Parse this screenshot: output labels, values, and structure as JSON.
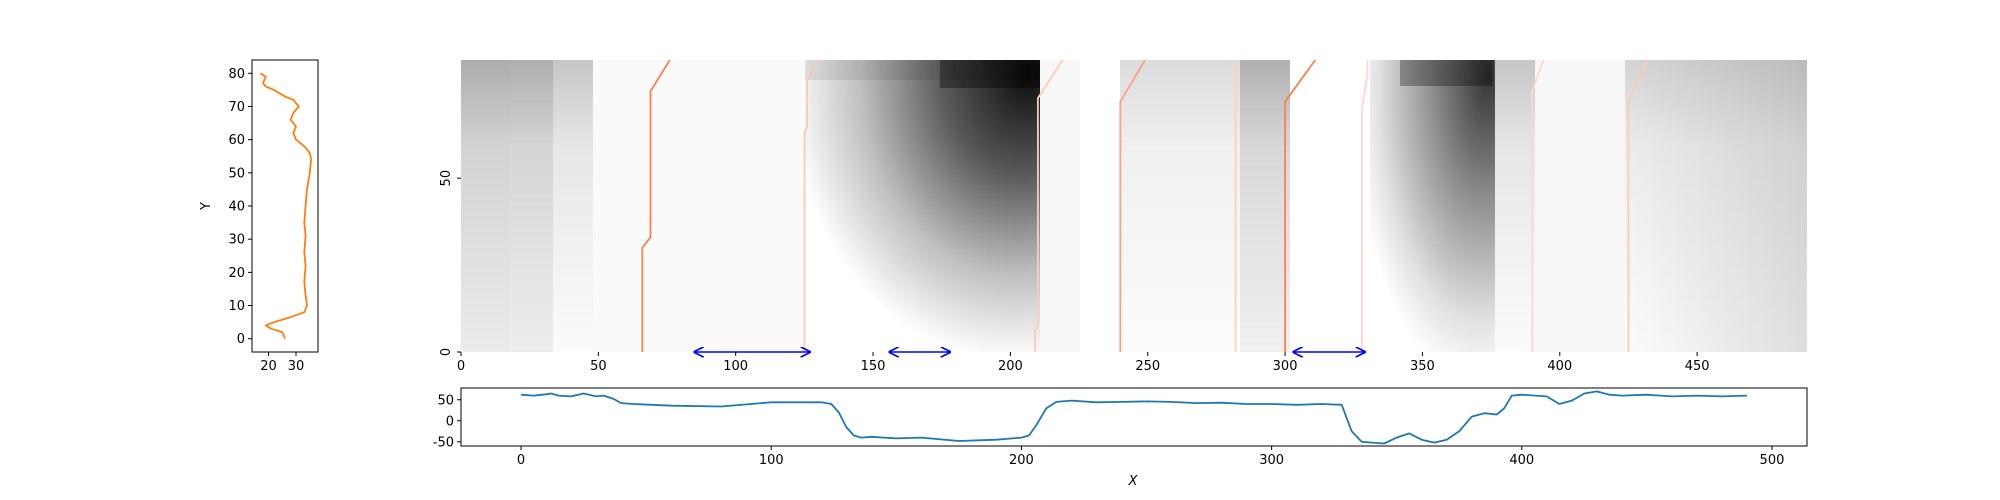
{
  "chart_data": [
    {
      "type": "line",
      "title": "",
      "xlabel": "",
      "ylabel": "Y",
      "xlim": [
        14,
        38
      ],
      "ylim": [
        -4,
        84
      ],
      "xticks": [
        20,
        30
      ],
      "yticks": [
        0,
        10,
        20,
        30,
        40,
        50,
        60,
        70,
        80
      ],
      "grid": false,
      "color": "#ff7f0e",
      "series": [
        {
          "x": [
            26,
            25,
            21,
            19,
            22,
            28,
            33,
            34,
            33.5,
            33,
            33.5,
            33,
            33.5,
            33,
            33.5,
            34,
            35,
            35.5,
            35,
            33,
            30,
            29,
            30,
            28,
            29,
            31,
            29,
            26,
            24,
            22,
            19,
            18,
            19,
            17
          ],
          "y": [
            0,
            2,
            3,
            4,
            5,
            6.5,
            8,
            10,
            13,
            17,
            22,
            26,
            31,
            35,
            40,
            45,
            50,
            54,
            56,
            58,
            60,
            62,
            64,
            66,
            68,
            70,
            72,
            73,
            74,
            75,
            76,
            77,
            79,
            80
          ]
        }
      ]
    },
    {
      "type": "heatmap",
      "title": "",
      "xlabel": "",
      "ylabel": "",
      "xlim": [
        0,
        490
      ],
      "ylim": [
        0,
        84
      ],
      "xticks": [
        0,
        50,
        100,
        150,
        200,
        250,
        300,
        350,
        400,
        450
      ],
      "yticks": [
        0,
        50
      ],
      "colormap": "Greys",
      "grid": false,
      "dark_regions": [
        {
          "x": [
            125,
            208
          ],
          "peak_x": 206,
          "peak_y": 80
        },
        {
          "x": [
            330,
            378
          ],
          "peak_x": 372,
          "peak_y": 80
        }
      ],
      "boundary_lines": [
        {
          "color": "#ff7f50",
          "points": [
            [
              66,
              0
            ],
            [
              66,
              30
            ],
            [
              69,
              33
            ],
            [
              69,
              75
            ],
            [
              76,
              84
            ]
          ]
        },
        {
          "color": "#ffc8b4",
          "points": [
            [
              125,
              0
            ],
            [
              125,
              63
            ],
            [
              126,
              65
            ],
            [
              126,
              78
            ],
            [
              130,
              84
            ]
          ]
        },
        {
          "color": "#ffcbb8",
          "points": [
            [
              209,
              0
            ],
            [
              209,
              6
            ],
            [
              210,
              8
            ],
            [
              210,
              73
            ],
            [
              219,
              84
            ]
          ]
        },
        {
          "color": "#ff9f80",
          "points": [
            [
              240,
              0
            ],
            [
              240,
              72
            ],
            [
              249,
              84
            ]
          ]
        },
        {
          "color": "#ffd0c0",
          "points": [
            [
              282,
              0
            ],
            [
              282,
              84
            ]
          ]
        },
        {
          "color": "#ff7f50",
          "points": [
            [
              300,
              0
            ],
            [
              300,
              72
            ],
            [
              311,
              84
            ]
          ]
        },
        {
          "color": "#ffd8c8",
          "points": [
            [
              328,
              0
            ],
            [
              328,
              70
            ],
            [
              330,
              80
            ],
            [
              330,
              84
            ]
          ]
        },
        {
          "color": "#ffd8c8",
          "points": [
            [
              390,
              0
            ],
            [
              390,
              75
            ],
            [
              394,
              84
            ]
          ]
        },
        {
          "color": "#ffc8b4",
          "points": [
            [
              425,
              0
            ],
            [
              425,
              72
            ],
            [
              432,
              84
            ]
          ]
        }
      ],
      "arrows": [
        {
          "x": [
            85,
            127
          ],
          "y": 0
        },
        {
          "x": [
            156,
            178
          ],
          "y": 0
        },
        {
          "x": [
            303,
            329
          ],
          "y": 0
        }
      ],
      "arrow_color": "#0000ff"
    },
    {
      "type": "line",
      "title": "",
      "xlabel": "X",
      "ylabel": "",
      "xlim": [
        -24,
        514
      ],
      "ylim": [
        -60,
        78
      ],
      "xticks": [
        0,
        100,
        200,
        300,
        400,
        500
      ],
      "yticks": [
        -50,
        0,
        50
      ],
      "grid": false,
      "color": "#1f77b4",
      "series": [
        {
          "x": [
            0,
            5,
            10,
            12,
            15,
            20,
            25,
            30,
            33,
            37,
            40,
            45,
            60,
            80,
            100,
            110,
            120,
            124,
            127,
            130,
            133,
            136,
            140,
            150,
            160,
            175,
            190,
            200,
            203,
            206,
            210,
            214,
            220,
            230,
            240,
            250,
            260,
            270,
            280,
            290,
            300,
            310,
            320,
            328,
            332,
            336,
            340,
            345,
            350,
            355,
            360,
            365,
            370,
            375,
            380,
            385,
            390,
            393,
            396,
            400,
            410,
            415,
            420,
            425,
            430,
            435,
            440,
            450,
            460,
            470,
            480,
            490
          ],
          "y": [
            62,
            60,
            63,
            65,
            60,
            58,
            65,
            58,
            60,
            52,
            42,
            40,
            36,
            34,
            44,
            44,
            44,
            40,
            20,
            -15,
            -35,
            -40,
            -38,
            -42,
            -40,
            -48,
            -45,
            -40,
            -35,
            -10,
            30,
            45,
            48,
            44,
            45,
            46,
            45,
            42,
            43,
            40,
            40,
            38,
            40,
            38,
            -25,
            -50,
            -52,
            -54,
            -40,
            -30,
            -45,
            -52,
            -45,
            -25,
            10,
            18,
            15,
            30,
            60,
            62,
            58,
            40,
            48,
            65,
            70,
            62,
            60,
            62,
            58,
            60,
            58,
            60
          ]
        }
      ]
    }
  ]
}
